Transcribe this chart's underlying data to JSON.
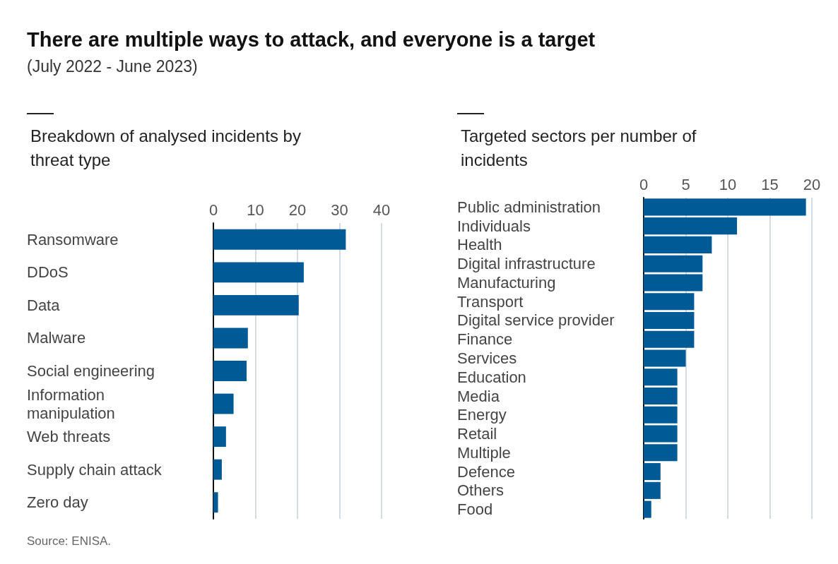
{
  "chart_data": [
    {
      "type": "other",
      "title": "There are multiple ways to attack, and everyone is a target",
      "subtitle": "(July 2022 - June 2023)"
    },
    {
      "type": "bar",
      "orientation": "horizontal",
      "title": "Breakdown of analysed incidents by threat type",
      "categories": [
        "Ransomware",
        "DDoS",
        "Data",
        "Malware",
        "Social engineering",
        "Information manipulation",
        "Web threats",
        "Supply chain attack",
        "Zero day"
      ],
      "values": [
        31.5,
        21.5,
        20.3,
        8.2,
        7.9,
        4.8,
        3,
        2,
        1.1
      ],
      "color": "#005a96",
      "xlim": [
        0,
        40
      ],
      "xticks": [
        0,
        10,
        20,
        30,
        40
      ],
      "grid": "x",
      "annotations": [
        "Source: ENISA."
      ]
    },
    {
      "type": "bar",
      "orientation": "horizontal",
      "title": "Targeted sectors per number of incidents",
      "categories": [
        "Public administration",
        "Individuals",
        "Health",
        "Digital infrastructure",
        "Manufacturing",
        "Transport",
        "Digital service provider",
        "Finance",
        "Services",
        "Education",
        "Media",
        "Energy",
        "Retail",
        "Multiple",
        "Defence",
        "Others",
        "Food"
      ],
      "values": [
        19.3,
        11.1,
        8.1,
        7,
        7,
        6,
        6,
        6,
        5,
        4,
        4,
        4,
        4,
        4,
        2,
        2,
        0.9
      ],
      "color": "#005a96",
      "xlim": [
        0,
        20
      ],
      "xticks": [
        0,
        5,
        10,
        15,
        20
      ],
      "grid": "x"
    }
  ]
}
